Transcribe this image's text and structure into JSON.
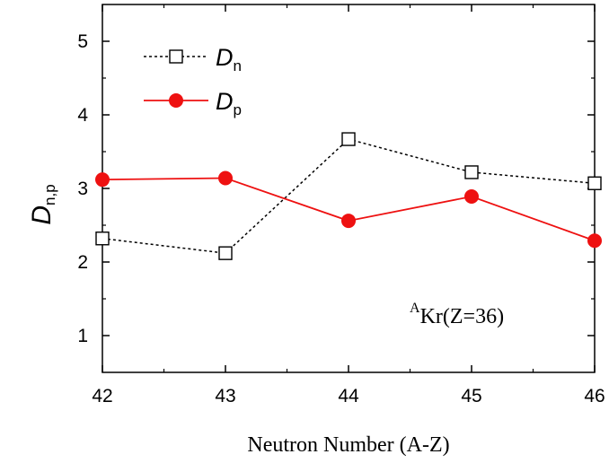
{
  "chart_data": {
    "type": "line",
    "xlabel": "Neutron Number (A-Z)",
    "ylabel": {
      "main": "D",
      "sub": "n,p"
    },
    "xlim": [
      42,
      46
    ],
    "ylim": [
      0.5,
      5.5
    ],
    "x_ticks": [
      "42",
      "43",
      "44",
      "45",
      "46"
    ],
    "y_ticks": [
      "1",
      "2",
      "3",
      "4",
      "5"
    ],
    "grid": false,
    "legend_position": "top-left",
    "x": [
      42,
      43,
      44,
      45,
      46
    ],
    "series": [
      {
        "name": "D",
        "name_sub": "n",
        "values": [
          2.32,
          2.12,
          3.67,
          3.22,
          3.07
        ],
        "color": "#000000",
        "line_style": "dotted",
        "marker": "open-square"
      },
      {
        "name": "D",
        "name_sub": "p",
        "values": [
          3.12,
          3.14,
          2.56,
          2.89,
          2.29
        ],
        "color": "#ee1111",
        "line_style": "solid",
        "marker": "filled-circle"
      }
    ],
    "annotation": {
      "superscript": "A",
      "text": "Kr(Z=36)"
    }
  }
}
